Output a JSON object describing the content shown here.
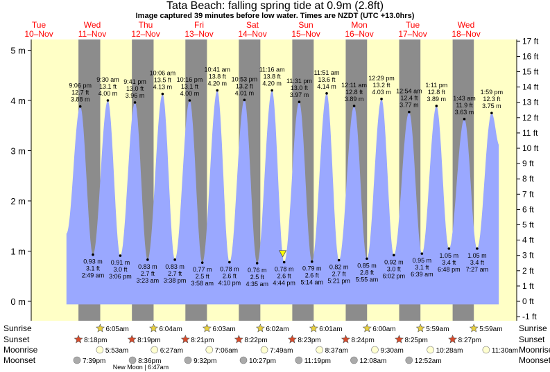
{
  "title": "Tata Beach: falling  spring tide at 0.9m (2.8ft)",
  "subtitle": "Image captured 39 minutes before low water. Times are NZDT (UTC +13.0hrs)",
  "days": [
    {
      "dow": "Tue",
      "date": "10–Nov"
    },
    {
      "dow": "Wed",
      "date": "11–Nov"
    },
    {
      "dow": "Thu",
      "date": "12–Nov"
    },
    {
      "dow": "Fri",
      "date": "13–Nov"
    },
    {
      "dow": "Sat",
      "date": "14–Nov"
    },
    {
      "dow": "Sun",
      "date": "15–Nov"
    },
    {
      "dow": "Mon",
      "date": "16–Nov"
    },
    {
      "dow": "Tue",
      "date": "17–Nov"
    },
    {
      "dow": "Wed",
      "date": "18–Nov"
    }
  ],
  "row_labels": {
    "sunrise": "Sunrise",
    "sunset": "Sunset",
    "moonrise": "Moonrise",
    "moonset": "Moonset"
  },
  "sunrise_times": [
    "6:05am",
    "6:04am",
    "6:03am",
    "6:02am",
    "6:01am",
    "6:00am",
    "5:59am",
    "5:59am"
  ],
  "sunset_times": [
    "8:18pm",
    "8:19pm",
    "8:21pm",
    "8:22pm",
    "8:23pm",
    "8:24pm",
    "8:25pm",
    "8:27pm"
  ],
  "moonrise_times": [
    "5:53am",
    "6:27am",
    "7:06am",
    "7:49am",
    "8:37am",
    "9:30am",
    "10:28am",
    "11:30am"
  ],
  "moonset_times": [
    "7:39pm",
    "8:36pm",
    "9:32pm",
    "10:27pm",
    "11:19pm",
    "12:08am",
    "12:52am"
  ],
  "moon_phase_note": "New Moon | 6:47am",
  "colors": {
    "tide_fill": "#9aa8ff",
    "day_bg": "#ffffc6",
    "night_bg": "#8c8c8c",
    "day_text": "#ff0000",
    "marker": "#ffff00"
  },
  "chart_data": {
    "type": "area",
    "title": "Tata Beach: falling  spring tide at 0.9m (2.8ft)",
    "y_left_unit": "m",
    "y_right_unit": "ft",
    "ylim_m": [
      -0.3,
      5.2
    ],
    "y_left_ticks": [
      0,
      1,
      2,
      3,
      4,
      5
    ],
    "y_right_ticks": [
      -1,
      0,
      1,
      2,
      3,
      4,
      5,
      6,
      7,
      8,
      9,
      10,
      11,
      12,
      13,
      14,
      15,
      16,
      17
    ],
    "extrema": [
      {
        "type": "high",
        "time": "9:06 pm",
        "m": 3.88,
        "ft": "12.7 ft",
        "m_label": "3.88 m"
      },
      {
        "type": "low",
        "time": "2:49 am",
        "m": 0.93,
        "ft": "3.1 ft",
        "m_label": "0.93 m"
      },
      {
        "type": "high",
        "time": "9:30 am",
        "m": 4.0,
        "ft": "13.1 ft",
        "m_label": "4.00 m"
      },
      {
        "type": "low",
        "time": "3:06 pm",
        "m": 0.91,
        "ft": "3.0 ft",
        "m_label": "0.91 m"
      },
      {
        "type": "high",
        "time": "9:41 pm",
        "m": 3.96,
        "ft": "13.0 ft",
        "m_label": "3.96 m"
      },
      {
        "type": "low",
        "time": "3:23 am",
        "m": 0.83,
        "ft": "2.7 ft",
        "m_label": "0.83 m"
      },
      {
        "type": "high",
        "time": "10:06 am",
        "m": 4.13,
        "ft": "13.5 ft",
        "m_label": "4.13 m"
      },
      {
        "type": "low",
        "time": "3:38 pm",
        "m": 0.83,
        "ft": "2.7 ft",
        "m_label": "0.83 m"
      },
      {
        "type": "high",
        "time": "10:16 pm",
        "m": 4.0,
        "ft": "13.1 ft",
        "m_label": "4.00 m"
      },
      {
        "type": "low",
        "time": "3:58 am",
        "m": 0.77,
        "ft": "2.5 ft",
        "m_label": "0.77 m"
      },
      {
        "type": "high",
        "time": "10:41 am",
        "m": 4.2,
        "ft": "13.8 ft",
        "m_label": "4.20 m"
      },
      {
        "type": "low",
        "time": "4:10 pm",
        "m": 0.78,
        "ft": "2.6 ft",
        "m_label": "0.78 m"
      },
      {
        "type": "high",
        "time": "10:53 pm",
        "m": 4.01,
        "ft": "13.2 ft",
        "m_label": "4.01 m"
      },
      {
        "type": "low",
        "time": "4:35 am",
        "m": 0.76,
        "ft": "2.5 ft",
        "m_label": "0.76 m"
      },
      {
        "type": "high",
        "time": "11:16 am",
        "m": 4.2,
        "ft": "13.8 ft",
        "m_label": "4.20 m"
      },
      {
        "type": "low",
        "time": "4:44 pm",
        "m": 0.78,
        "ft": "2.6 ft",
        "m_label": "0.78 m"
      },
      {
        "type": "high",
        "time": "11:31 pm",
        "m": 3.97,
        "ft": "13.0 ft",
        "m_label": "3.97 m"
      },
      {
        "type": "low",
        "time": "5:14 am",
        "m": 0.79,
        "ft": "2.6 ft",
        "m_label": "0.79 m"
      },
      {
        "type": "high",
        "time": "11:51 am",
        "m": 4.14,
        "ft": "13.6 ft",
        "m_label": "4.14 m"
      },
      {
        "type": "low",
        "time": "5:21 pm",
        "m": 0.82,
        "ft": "2.7 ft",
        "m_label": "0.82 m"
      },
      {
        "type": "high",
        "time": "12:11 am",
        "m": 3.89,
        "ft": "12.8 ft",
        "m_label": "3.89 m"
      },
      {
        "type": "low",
        "time": "5:55 am",
        "m": 0.85,
        "ft": "2.8 ft",
        "m_label": "0.85 m"
      },
      {
        "type": "high",
        "time": "12:29 pm",
        "m": 4.03,
        "ft": "13.2 ft",
        "m_label": "4.03 m"
      },
      {
        "type": "low",
        "time": "6:02 pm",
        "m": 0.92,
        "ft": "3.0 ft",
        "m_label": "0.92 m"
      },
      {
        "type": "high",
        "time": "12:54 am",
        "m": 3.77,
        "ft": "12.4 ft",
        "m_label": "3.77 m"
      },
      {
        "type": "low",
        "time": "6:39 am",
        "m": 0.95,
        "ft": "3.1 ft",
        "m_label": "0.95 m"
      },
      {
        "type": "high",
        "time": "1:11 pm",
        "m": 3.89,
        "ft": "12.8 ft",
        "m_label": "3.89 m"
      },
      {
        "type": "low",
        "time": "6:48 pm",
        "m": 1.05,
        "ft": "3.4 ft",
        "m_label": "1.05 m"
      },
      {
        "type": "high",
        "time": "1:43 am",
        "m": 3.63,
        "ft": "11.9 ft",
        "m_label": "3.63 m"
      },
      {
        "type": "low",
        "time": "7:27 am",
        "m": 1.05,
        "ft": "3.4 ft",
        "m_label": "1.05 m"
      },
      {
        "type": "high",
        "time": "1:59 pm",
        "m": 3.75,
        "ft": "12.3 ft",
        "m_label": "3.75 m"
      }
    ],
    "current_level_m": 0.9
  }
}
